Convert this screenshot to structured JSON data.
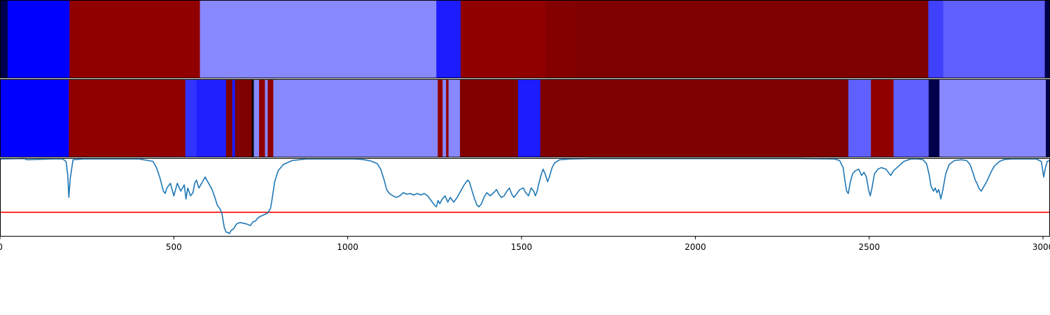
{
  "chart_data": {
    "type": "heatmap",
    "xlim": [
      0,
      3020
    ],
    "x_ticks": [
      0,
      500,
      1000,
      1500,
      2000,
      2500,
      3000
    ],
    "x_tick_labels": [
      "0",
      "500",
      "1000",
      "1500",
      "2000",
      "2500",
      "3000"
    ],
    "rows": [
      {
        "segments": [
          {
            "start": 0,
            "end": 22,
            "color": "#00004d"
          },
          {
            "start": 22,
            "end": 200,
            "color": "#0000ff"
          },
          {
            "start": 200,
            "end": 575,
            "color": "#910000"
          },
          {
            "start": 575,
            "end": 1255,
            "color": "#8888ff"
          },
          {
            "start": 1255,
            "end": 1325,
            "color": "#1c1cff"
          },
          {
            "start": 1325,
            "end": 1568,
            "color": "#910000"
          },
          {
            "start": 1568,
            "end": 1655,
            "color": "#840000"
          },
          {
            "start": 1655,
            "end": 2670,
            "color": "#7f0000"
          },
          {
            "start": 2670,
            "end": 2713,
            "color": "#4040ff"
          },
          {
            "start": 2713,
            "end": 3005,
            "color": "#6060ff"
          },
          {
            "start": 3005,
            "end": 3020,
            "color": "#00004d"
          }
        ]
      },
      {
        "segments": [
          {
            "start": 0,
            "end": 198,
            "color": "#0000ff"
          },
          {
            "start": 198,
            "end": 533,
            "color": "#910000"
          },
          {
            "start": 533,
            "end": 565,
            "color": "#3333ff"
          },
          {
            "start": 565,
            "end": 650,
            "color": "#2020ff"
          },
          {
            "start": 650,
            "end": 668,
            "color": "#7f0000"
          },
          {
            "start": 668,
            "end": 676,
            "color": "#1c1cff"
          },
          {
            "start": 676,
            "end": 724,
            "color": "#7f0000"
          },
          {
            "start": 724,
            "end": 730,
            "color": "#000000"
          },
          {
            "start": 730,
            "end": 745,
            "color": "#8888ff"
          },
          {
            "start": 745,
            "end": 762,
            "color": "#910000"
          },
          {
            "start": 762,
            "end": 770,
            "color": "#8888ff"
          },
          {
            "start": 770,
            "end": 786,
            "color": "#910000"
          },
          {
            "start": 786,
            "end": 1259,
            "color": "#8888ff"
          },
          {
            "start": 1259,
            "end": 1273,
            "color": "#910000"
          },
          {
            "start": 1273,
            "end": 1283,
            "color": "#8888ff"
          },
          {
            "start": 1283,
            "end": 1290,
            "color": "#910000"
          },
          {
            "start": 1290,
            "end": 1323,
            "color": "#8888ff"
          },
          {
            "start": 1323,
            "end": 1490,
            "color": "#800000"
          },
          {
            "start": 1490,
            "end": 1554,
            "color": "#1c1cff"
          },
          {
            "start": 1554,
            "end": 2440,
            "color": "#7f0000"
          },
          {
            "start": 2440,
            "end": 2505,
            "color": "#6060ff"
          },
          {
            "start": 2505,
            "end": 2570,
            "color": "#910000"
          },
          {
            "start": 2570,
            "end": 2671,
            "color": "#6060ff"
          },
          {
            "start": 2671,
            "end": 2702,
            "color": "#00004d"
          },
          {
            "start": 2702,
            "end": 3008,
            "color": "#8888ff"
          },
          {
            "start": 3008,
            "end": 3020,
            "color": "#00004d"
          }
        ]
      }
    ],
    "line": {
      "color": "#1f77b4",
      "ylim": [
        0.0,
        1.0
      ],
      "points": [
        [
          0,
          0.99
        ],
        [
          70,
          0.995
        ],
        [
          78,
          0.98
        ],
        [
          150,
          0.99
        ],
        [
          180,
          0.99
        ],
        [
          190,
          0.96
        ],
        [
          195,
          0.78
        ],
        [
          198,
          0.5
        ],
        [
          202,
          0.74
        ],
        [
          210,
          0.98
        ],
        [
          240,
          0.99
        ],
        [
          300,
          0.99
        ],
        [
          400,
          0.99
        ],
        [
          440,
          0.96
        ],
        [
          450,
          0.88
        ],
        [
          460,
          0.75
        ],
        [
          470,
          0.58
        ],
        [
          475,
          0.55
        ],
        [
          480,
          0.62
        ],
        [
          490,
          0.68
        ],
        [
          500,
          0.52
        ],
        [
          510,
          0.68
        ],
        [
          520,
          0.58
        ],
        [
          530,
          0.66
        ],
        [
          535,
          0.48
        ],
        [
          540,
          0.62
        ],
        [
          548,
          0.52
        ],
        [
          555,
          0.56
        ],
        [
          560,
          0.68
        ],
        [
          565,
          0.72
        ],
        [
          572,
          0.62
        ],
        [
          580,
          0.68
        ],
        [
          590,
          0.76
        ],
        [
          600,
          0.68
        ],
        [
          610,
          0.6
        ],
        [
          618,
          0.5
        ],
        [
          625,
          0.4
        ],
        [
          632,
          0.36
        ],
        [
          638,
          0.3
        ],
        [
          645,
          0.12
        ],
        [
          650,
          0.06
        ],
        [
          660,
          0.04
        ],
        [
          665,
          0.08
        ],
        [
          672,
          0.1
        ],
        [
          680,
          0.16
        ],
        [
          690,
          0.18
        ],
        [
          700,
          0.17
        ],
        [
          710,
          0.16
        ],
        [
          720,
          0.14
        ],
        [
          728,
          0.19
        ],
        [
          735,
          0.2
        ],
        [
          742,
          0.24
        ],
        [
          750,
          0.26
        ],
        [
          760,
          0.28
        ],
        [
          770,
          0.3
        ],
        [
          778,
          0.36
        ],
        [
          782,
          0.46
        ],
        [
          790,
          0.7
        ],
        [
          800,
          0.84
        ],
        [
          815,
          0.92
        ],
        [
          840,
          0.97
        ],
        [
          880,
          0.99
        ],
        [
          950,
          0.99
        ],
        [
          1020,
          0.99
        ],
        [
          1040,
          0.985
        ],
        [
          1055,
          0.975
        ],
        [
          1070,
          0.96
        ],
        [
          1085,
          0.93
        ],
        [
          1095,
          0.86
        ],
        [
          1105,
          0.72
        ],
        [
          1112,
          0.6
        ],
        [
          1120,
          0.55
        ],
        [
          1130,
          0.52
        ],
        [
          1140,
          0.5
        ],
        [
          1150,
          0.52
        ],
        [
          1160,
          0.56
        ],
        [
          1170,
          0.54
        ],
        [
          1180,
          0.55
        ],
        [
          1190,
          0.53
        ],
        [
          1200,
          0.55
        ],
        [
          1210,
          0.53
        ],
        [
          1220,
          0.55
        ],
        [
          1230,
          0.52
        ],
        [
          1240,
          0.46
        ],
        [
          1250,
          0.4
        ],
        [
          1255,
          0.38
        ],
        [
          1260,
          0.46
        ],
        [
          1265,
          0.42
        ],
        [
          1272,
          0.48
        ],
        [
          1280,
          0.52
        ],
        [
          1288,
          0.44
        ],
        [
          1295,
          0.5
        ],
        [
          1305,
          0.44
        ],
        [
          1315,
          0.5
        ],
        [
          1325,
          0.58
        ],
        [
          1335,
          0.66
        ],
        [
          1345,
          0.72
        ],
        [
          1350,
          0.7
        ],
        [
          1358,
          0.58
        ],
        [
          1365,
          0.48
        ],
        [
          1372,
          0.4
        ],
        [
          1378,
          0.38
        ],
        [
          1385,
          0.42
        ],
        [
          1392,
          0.5
        ],
        [
          1400,
          0.56
        ],
        [
          1410,
          0.52
        ],
        [
          1420,
          0.56
        ],
        [
          1428,
          0.6
        ],
        [
          1435,
          0.54
        ],
        [
          1442,
          0.5
        ],
        [
          1450,
          0.52
        ],
        [
          1458,
          0.58
        ],
        [
          1465,
          0.62
        ],
        [
          1472,
          0.54
        ],
        [
          1478,
          0.5
        ],
        [
          1485,
          0.54
        ],
        [
          1495,
          0.6
        ],
        [
          1505,
          0.62
        ],
        [
          1512,
          0.56
        ],
        [
          1520,
          0.52
        ],
        [
          1528,
          0.62
        ],
        [
          1535,
          0.58
        ],
        [
          1540,
          0.52
        ],
        [
          1545,
          0.58
        ],
        [
          1550,
          0.68
        ],
        [
          1556,
          0.78
        ],
        [
          1562,
          0.86
        ],
        [
          1568,
          0.8
        ],
        [
          1575,
          0.7
        ],
        [
          1580,
          0.76
        ],
        [
          1588,
          0.88
        ],
        [
          1595,
          0.94
        ],
        [
          1610,
          0.98
        ],
        [
          1640,
          0.99
        ],
        [
          1700,
          0.995
        ],
        [
          2000,
          0.995
        ],
        [
          2300,
          0.995
        ],
        [
          2400,
          0.99
        ],
        [
          2415,
          0.97
        ],
        [
          2425,
          0.88
        ],
        [
          2430,
          0.72
        ],
        [
          2435,
          0.58
        ],
        [
          2440,
          0.55
        ],
        [
          2445,
          0.68
        ],
        [
          2452,
          0.8
        ],
        [
          2460,
          0.84
        ],
        [
          2470,
          0.86
        ],
        [
          2478,
          0.78
        ],
        [
          2485,
          0.82
        ],
        [
          2492,
          0.76
        ],
        [
          2498,
          0.6
        ],
        [
          2503,
          0.52
        ],
        [
          2508,
          0.62
        ],
        [
          2515,
          0.8
        ],
        [
          2525,
          0.86
        ],
        [
          2535,
          0.88
        ],
        [
          2548,
          0.86
        ],
        [
          2555,
          0.82
        ],
        [
          2562,
          0.78
        ],
        [
          2570,
          0.84
        ],
        [
          2580,
          0.88
        ],
        [
          2590,
          0.92
        ],
        [
          2600,
          0.96
        ],
        [
          2620,
          0.99
        ],
        [
          2640,
          0.99
        ],
        [
          2655,
          0.98
        ],
        [
          2665,
          0.93
        ],
        [
          2672,
          0.8
        ],
        [
          2678,
          0.64
        ],
        [
          2685,
          0.58
        ],
        [
          2690,
          0.62
        ],
        [
          2695,
          0.56
        ],
        [
          2700,
          0.6
        ],
        [
          2706,
          0.48
        ],
        [
          2712,
          0.6
        ],
        [
          2720,
          0.8
        ],
        [
          2730,
          0.92
        ],
        [
          2745,
          0.97
        ],
        [
          2765,
          0.98
        ],
        [
          2780,
          0.97
        ],
        [
          2790,
          0.92
        ],
        [
          2798,
          0.82
        ],
        [
          2805,
          0.72
        ],
        [
          2810,
          0.68
        ],
        [
          2815,
          0.62
        ],
        [
          2822,
          0.58
        ],
        [
          2830,
          0.64
        ],
        [
          2840,
          0.72
        ],
        [
          2850,
          0.82
        ],
        [
          2860,
          0.9
        ],
        [
          2875,
          0.96
        ],
        [
          2890,
          0.985
        ],
        [
          2910,
          0.99
        ],
        [
          2950,
          0.99
        ],
        [
          2980,
          0.99
        ],
        [
          2995,
          0.96
        ],
        [
          3002,
          0.76
        ],
        [
          3007,
          0.88
        ],
        [
          3012,
          0.96
        ],
        [
          3020,
          0.97
        ]
      ]
    },
    "threshold": {
      "value": 0.31,
      "color": "#ff0000"
    }
  }
}
